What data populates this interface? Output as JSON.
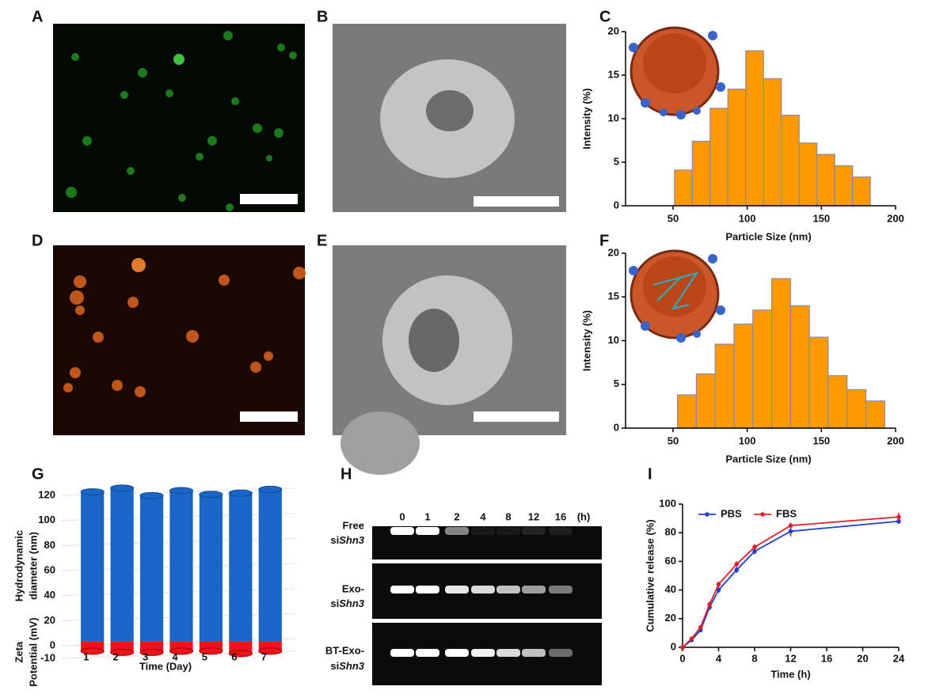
{
  "panel_labels": [
    "A",
    "B",
    "C",
    "D",
    "E",
    "F",
    "G",
    "H",
    "I"
  ],
  "chart_data": [
    {
      "type": "histogram",
      "xlabel": "Particle Size (nm)",
      "ylabel": "Intensity (%)",
      "bins": [
        51,
        63,
        75,
        87,
        99,
        111,
        123,
        135,
        147,
        159,
        171,
        183
      ],
      "values": [
        4.1,
        7.4,
        11.2,
        13.4,
        17.8,
        14.6,
        10.4,
        7.2,
        5.9,
        4.6,
        3.3
      ],
      "color": "#ff9900",
      "xlim": [
        18,
        200
      ],
      "xticks": [
        50,
        100,
        150,
        200
      ],
      "ylim": [
        0,
        20
      ],
      "yticks": [
        0,
        5,
        10,
        15,
        20
      ]
    },
    {
      "type": "histogram",
      "xlabel": "Particle Size (nm)",
      "ylabel": "Intensity (%)",
      "bins": [
        53,
        65.7,
        78.4,
        91.1,
        103.8,
        116.5,
        129.2,
        141.9,
        154.6,
        167.3,
        180,
        192.7
      ],
      "values": [
        3.8,
        6.2,
        9.6,
        11.9,
        13.5,
        17.1,
        14.0,
        10.4,
        6.0,
        4.4,
        3.1
      ],
      "color": "#ff9900",
      "xlim": [
        18,
        200
      ],
      "xticks": [
        50,
        100,
        150,
        200
      ],
      "ylim": [
        0,
        20
      ],
      "yticks": [
        0,
        5,
        10,
        15,
        20
      ]
    },
    {
      "type": "bar3d",
      "xlabel": "Time (Day)",
      "ylabels": [
        [
          "Hydrodynamic",
          "diameter (nm)"
        ],
        [
          "Zeta",
          "Potential (mV)"
        ]
      ],
      "categories": [
        "1",
        "2",
        "3",
        "4",
        "5",
        "6",
        "7"
      ],
      "series": [
        {
          "color": "#1a66c8",
          "values": [
            119,
            122,
            116,
            120,
            117,
            118,
            121
          ]
        },
        {
          "color": "#e8161b",
          "values": [
            -8,
            -9,
            -9,
            -8,
            -8,
            -10,
            -8
          ]
        }
      ],
      "ylim": [
        -10,
        120
      ],
      "yticks": [
        -10,
        0,
        20,
        40,
        60,
        80,
        100,
        120
      ],
      "grid": true
    },
    {
      "type": "line",
      "xlabel": "Time (h)",
      "ylabel": "Cumulative release (%)",
      "x": [
        0,
        1,
        2,
        3,
        4,
        6,
        8,
        12,
        24
      ],
      "series": [
        {
          "name": "PBS",
          "color": "#1f3fd0",
          "values": [
            0,
            5,
            12,
            28,
            40,
            54,
            67,
            81,
            88
          ],
          "errors": [
            0.5,
            1,
            1.5,
            2,
            2,
            2,
            2,
            3.5,
            2
          ]
        },
        {
          "name": "FBS",
          "color": "#e41e26",
          "values": [
            0,
            6,
            14,
            30,
            44,
            58,
            70,
            85,
            91
          ],
          "errors": [
            0.5,
            1,
            1.5,
            2,
            2,
            2,
            2,
            2,
            3
          ]
        }
      ],
      "xlim": [
        0,
        24
      ],
      "xticks": [
        0,
        4,
        8,
        12,
        16,
        20,
        24
      ],
      "ylim": [
        0,
        100
      ],
      "yticks": [
        0,
        20,
        40,
        60,
        80,
        100
      ],
      "legend": "top"
    }
  ],
  "gel": {
    "lanes": [
      "0",
      "1",
      "2",
      "4",
      "8",
      "12",
      "16"
    ],
    "unit": "(h)",
    "rows": [
      {
        "name": "Free",
        "si": "si",
        "gene": "Shn3"
      },
      {
        "name": "Exo-",
        "si": "si",
        "gene": "Shn3"
      },
      {
        "name": "BT-Exo-",
        "si": "si",
        "gene": "Shn3"
      }
    ]
  }
}
